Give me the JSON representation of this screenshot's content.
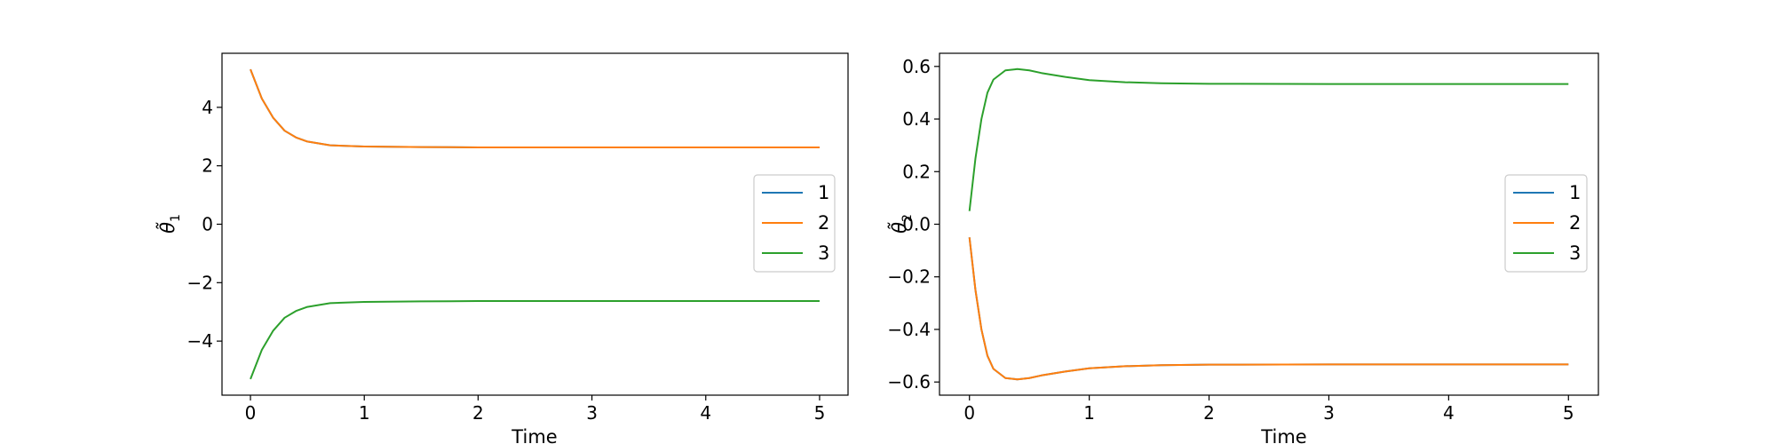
{
  "chart_data": [
    {
      "type": "line",
      "xlabel": "Time",
      "ylabel": "θ̃",
      "ylabel_subscript": "1",
      "xlim": [
        -0.25,
        5.25
      ],
      "ylim": [
        -5.85,
        5.85
      ],
      "xticks": [
        0,
        1,
        2,
        3,
        4,
        5
      ],
      "xtick_labels": [
        "0",
        "1",
        "2",
        "3",
        "4",
        "5"
      ],
      "yticks": [
        -4,
        -2,
        0,
        2,
        4
      ],
      "ytick_labels": [
        "−4",
        "−2",
        "0",
        "2",
        "4"
      ],
      "grid": false,
      "legend_position": "center-right",
      "series": [
        {
          "name": "1",
          "color": "#1f77b4",
          "x": [
            0,
            0.1,
            0.2,
            0.3,
            0.4,
            0.5,
            0.7,
            1.0,
            1.5,
            2.0,
            3.0,
            4.0,
            5.0
          ],
          "y": [
            5.3,
            4.3,
            3.64,
            3.2,
            2.97,
            2.83,
            2.7,
            2.66,
            2.64,
            2.63,
            2.63,
            2.63,
            2.63
          ]
        },
        {
          "name": "2",
          "color": "#ff7f0e",
          "x": [
            0,
            0.1,
            0.2,
            0.3,
            0.4,
            0.5,
            0.7,
            1.0,
            1.5,
            2.0,
            3.0,
            4.0,
            5.0
          ],
          "y": [
            5.3,
            4.3,
            3.64,
            3.2,
            2.97,
            2.83,
            2.7,
            2.66,
            2.64,
            2.63,
            2.63,
            2.63,
            2.63
          ]
        },
        {
          "name": "3",
          "color": "#2ca02c",
          "x": [
            0,
            0.1,
            0.2,
            0.3,
            0.4,
            0.5,
            0.7,
            1.0,
            1.5,
            2.0,
            3.0,
            4.0,
            5.0
          ],
          "y": [
            -5.3,
            -4.3,
            -3.64,
            -3.2,
            -2.97,
            -2.83,
            -2.7,
            -2.66,
            -2.64,
            -2.63,
            -2.63,
            -2.63,
            -2.63
          ]
        }
      ]
    },
    {
      "type": "line",
      "xlabel": "Time",
      "ylabel": "θ̃",
      "ylabel_subscript": "2",
      "xlim": [
        -0.25,
        5.25
      ],
      "ylim": [
        -0.65,
        0.65
      ],
      "xticks": [
        0,
        1,
        2,
        3,
        4,
        5
      ],
      "xtick_labels": [
        "0",
        "1",
        "2",
        "3",
        "4",
        "5"
      ],
      "yticks": [
        -0.6,
        -0.4,
        -0.2,
        0.0,
        0.2,
        0.4,
        0.6
      ],
      "ytick_labels": [
        "−0.6",
        "−0.4",
        "−0.2",
        "0.0",
        "0.2",
        "0.4",
        "0.6"
      ],
      "grid": false,
      "legend_position": "center-right",
      "series": [
        {
          "name": "1",
          "color": "#1f77b4",
          "x": [
            0,
            0.05,
            0.1,
            0.15,
            0.2,
            0.3,
            0.4,
            0.5,
            0.6,
            0.8,
            1.0,
            1.3,
            1.6,
            2.0,
            3.0,
            4.0,
            5.0
          ],
          "y": [
            -0.05,
            -0.25,
            -0.4,
            -0.5,
            -0.55,
            -0.585,
            -0.59,
            -0.585,
            -0.575,
            -0.56,
            -0.548,
            -0.54,
            -0.536,
            -0.534,
            -0.533,
            -0.533,
            -0.533
          ]
        },
        {
          "name": "2",
          "color": "#ff7f0e",
          "x": [
            0,
            0.05,
            0.1,
            0.15,
            0.2,
            0.3,
            0.4,
            0.5,
            0.6,
            0.8,
            1.0,
            1.3,
            1.6,
            2.0,
            3.0,
            4.0,
            5.0
          ],
          "y": [
            -0.05,
            -0.25,
            -0.4,
            -0.5,
            -0.55,
            -0.585,
            -0.59,
            -0.585,
            -0.575,
            -0.56,
            -0.548,
            -0.54,
            -0.536,
            -0.534,
            -0.533,
            -0.533,
            -0.533
          ]
        },
        {
          "name": "3",
          "color": "#2ca02c",
          "x": [
            0,
            0.05,
            0.1,
            0.15,
            0.2,
            0.3,
            0.4,
            0.5,
            0.6,
            0.8,
            1.0,
            1.3,
            1.6,
            2.0,
            3.0,
            4.0,
            5.0
          ],
          "y": [
            0.05,
            0.25,
            0.4,
            0.5,
            0.55,
            0.585,
            0.59,
            0.585,
            0.575,
            0.56,
            0.548,
            0.54,
            0.536,
            0.534,
            0.533,
            0.533,
            0.533
          ]
        }
      ]
    }
  ]
}
